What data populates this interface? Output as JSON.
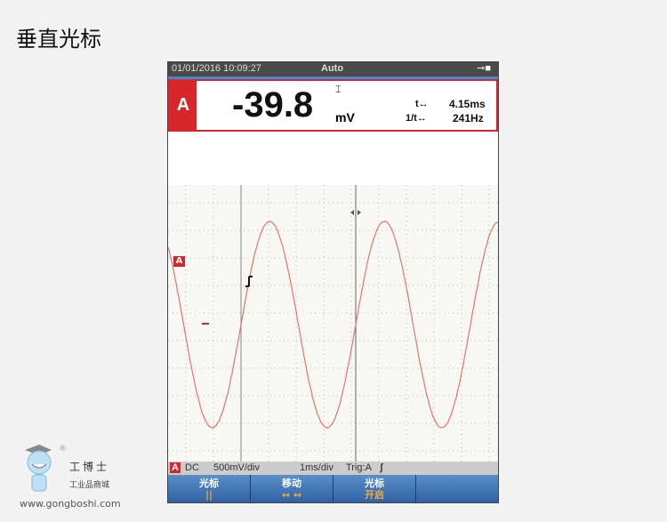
{
  "page_title": "垂直光标",
  "topbar": {
    "datetime": "01/01/2016 10:09:27",
    "mode": "Auto",
    "power_icon": "plug-icon"
  },
  "readout": {
    "channel": "A",
    "value": "-39.8",
    "unit": "mV",
    "cursor_icon": "vertical-cursor-icon",
    "t_label": "t↔",
    "t_value": "4.15ms",
    "f_label": "1/t↔",
    "f_value": "241Hz"
  },
  "plot": {
    "channel_marker": "A",
    "trace_color": "#e8726f"
  },
  "status": {
    "channel": "A",
    "coupling": "DC",
    "vdiv": "500mV/div",
    "tdiv": "1ms/div",
    "trig": "Trig:A",
    "trig_icon": "rising-edge-icon"
  },
  "buttons": [
    {
      "label": "光标",
      "sub": "||"
    },
    {
      "label": "移动",
      "sub": "↔ ↔"
    },
    {
      "label": "光标",
      "sub": "开启"
    },
    {
      "label": "",
      "sub": ""
    }
  ],
  "logo": {
    "brand": "工博士",
    "tagline": "工业品商城",
    "url": "www.gongboshi.com"
  }
}
